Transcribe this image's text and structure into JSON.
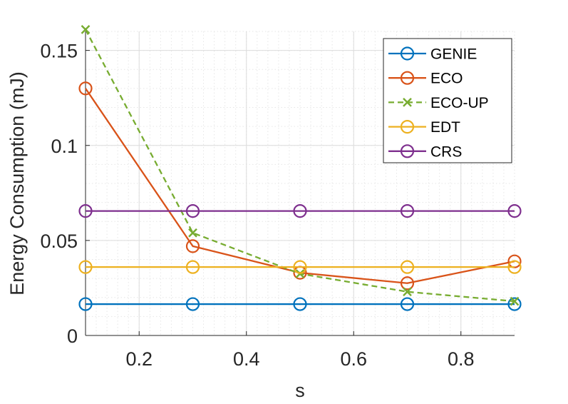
{
  "chart_data": {
    "type": "line",
    "title": "",
    "xlabel": "s",
    "ylabel": "Energy Consumption (mJ)",
    "xlim": [
      0.1,
      0.9
    ],
    "ylim": [
      0,
      0.16
    ],
    "xticks": [
      0.2,
      0.4,
      0.6,
      0.8
    ],
    "xtick_labels": [
      "0.2",
      "0.4",
      "0.6",
      "0.8"
    ],
    "yticks": [
      0,
      0.05,
      0.1,
      0.15
    ],
    "ytick_labels": [
      "0",
      "0.05",
      "0.1",
      "0.15"
    ],
    "grid": true,
    "minor_grid": true,
    "legend_position": "top-right",
    "x": [
      0.1,
      0.3,
      0.5,
      0.7,
      0.9
    ],
    "series": [
      {
        "name": "GENIE",
        "values": [
          0.0165,
          0.0165,
          0.0165,
          0.0165,
          0.0165
        ],
        "color": "#0072BD",
        "marker": "circle",
        "line_style": "solid"
      },
      {
        "name": "ECO",
        "values": [
          0.13,
          0.047,
          0.033,
          0.0275,
          0.039
        ],
        "color": "#D95319",
        "marker": "circle",
        "line_style": "solid"
      },
      {
        "name": "ECO-UP",
        "values": [
          0.161,
          0.054,
          0.0325,
          0.023,
          0.018
        ],
        "color": "#77AC30",
        "marker": "x",
        "line_style": "dashed"
      },
      {
        "name": "EDT",
        "values": [
          0.036,
          0.036,
          0.036,
          0.036,
          0.036
        ],
        "color": "#EDB120",
        "marker": "circle",
        "line_style": "solid"
      },
      {
        "name": "CRS",
        "values": [
          0.0655,
          0.0655,
          0.0655,
          0.0655,
          0.0655
        ],
        "color": "#7E2F8E",
        "marker": "circle",
        "line_style": "solid"
      }
    ]
  }
}
